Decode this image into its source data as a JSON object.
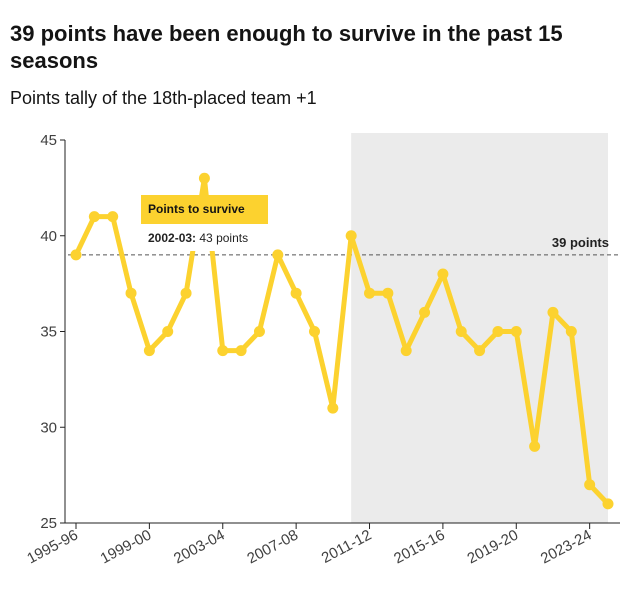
{
  "header": {
    "title": "39 points have been enough to survive in the past 15 seasons",
    "subtitle": "Points tally of the 18th-placed team +1"
  },
  "colors": {
    "line": "#fcd22f",
    "shade": "#ebebeb",
    "reference": "#555555",
    "axis": "#222222",
    "tooltip_bg": "#fcd22f"
  },
  "chart_data": {
    "type": "line",
    "title": "39 points have been enough to survive in the past 15 seasons",
    "subtitle": "Points tally of the 18th-placed team +1",
    "xlabel": "",
    "ylabel": "",
    "ylim": [
      25,
      45
    ],
    "yticks": [
      25,
      30,
      35,
      40,
      45
    ],
    "grid": false,
    "x": [
      "1995-96",
      "1996-97",
      "1997-98",
      "1998-99",
      "1999-00",
      "2000-01",
      "2001-02",
      "2002-03",
      "2003-04",
      "2004-05",
      "2005-06",
      "2006-07",
      "2007-08",
      "2008-09",
      "2009-10",
      "2010-11",
      "2011-12",
      "2012-13",
      "2013-14",
      "2014-15",
      "2015-16",
      "2016-17",
      "2017-18",
      "2018-19",
      "2019-20",
      "2020-21",
      "2021-22",
      "2022-23",
      "2023-24",
      "2024-25"
    ],
    "xtick_labels": [
      "1995-96",
      "1999-00",
      "2003-04",
      "2007-08",
      "2011-12",
      "2015-16",
      "2019-20",
      "2023-24"
    ],
    "series": [
      {
        "values": [
          39,
          41,
          41,
          37,
          34,
          35,
          37,
          43,
          34,
          34,
          35,
          39,
          37,
          35,
          31,
          40,
          37,
          37,
          34,
          36,
          38,
          35,
          34,
          35,
          35,
          29,
          36,
          35,
          27,
          26
        ]
      }
    ],
    "reference_line": {
      "value": 39,
      "label": "39 points"
    },
    "shaded_region": {
      "from": "2010-11",
      "to": "2024-25"
    },
    "tooltip": {
      "title": "Points to survive",
      "season": "2002-03:",
      "value": "43 points"
    }
  }
}
